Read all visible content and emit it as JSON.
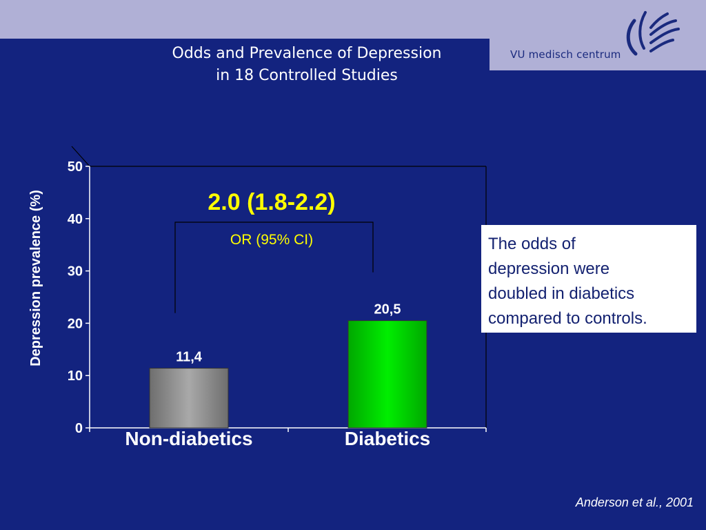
{
  "header": {
    "title_lines": [
      "Odds and Prevalence of Depression",
      "in 18 Controlled Studies"
    ],
    "logo_text": "VU medisch centrum"
  },
  "chart_data": {
    "type": "bar",
    "ylabel": "Depression prevalence (%)",
    "ylim": [
      0,
      50
    ],
    "yticks": [
      0,
      10,
      20,
      30,
      40,
      50
    ],
    "grid": false,
    "categories": [
      "Non-diabetics",
      "Diabetics"
    ],
    "values": [
      11.4,
      20.5
    ],
    "value_labels": [
      "11,4",
      "20,5"
    ],
    "annotations": {
      "odds_ratio": "2.0 (1.8-2.2)",
      "odds_ratio_caption": "OR (95% CI)"
    }
  },
  "callout": {
    "lines": [
      "The odds of",
      "depression were",
      "doubled in diabetics",
      "compared to controls."
    ]
  },
  "footer": {
    "citation": "Anderson et al., 2001"
  },
  "colors": {
    "background": "#13237f",
    "header_band": "#b0b0d6",
    "bar_non_diabetics": "#a9a9a9",
    "bar_diabetics": "#00ee00",
    "annotation": "#ffff00",
    "logo": "#1a2a7e"
  }
}
